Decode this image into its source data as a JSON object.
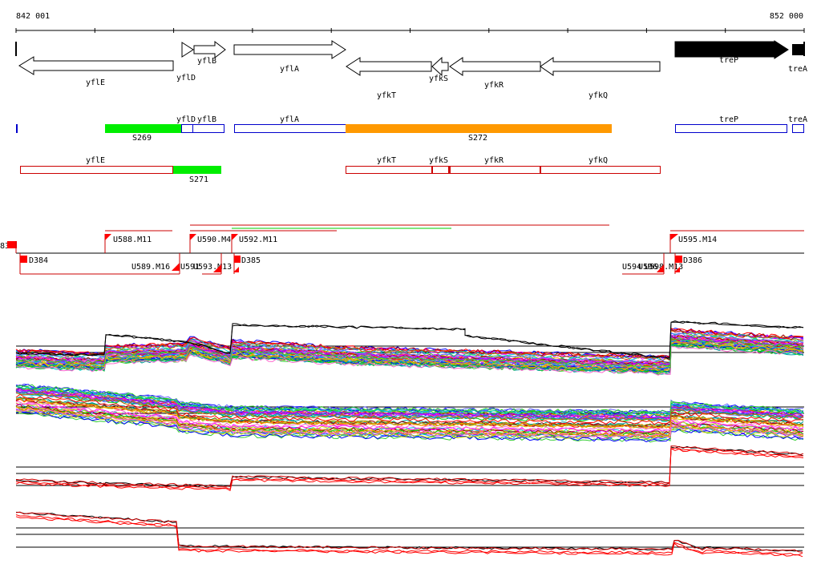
{
  "ruler": {
    "start_label": "842 001",
    "end_label": "852 000"
  },
  "genes": [
    {
      "name": "yflE",
      "strand": "-",
      "fill": "white"
    },
    {
      "name": "yflD",
      "strand": "+",
      "fill": "white"
    },
    {
      "name": "yflB",
      "strand": "+",
      "fill": "white"
    },
    {
      "name": "yflA",
      "strand": "+",
      "fill": "white"
    },
    {
      "name": "yfkT",
      "strand": "-",
      "fill": "white"
    },
    {
      "name": "yfkS",
      "strand": "-",
      "fill": "white"
    },
    {
      "name": "yfkR",
      "strand": "-",
      "fill": "white"
    },
    {
      "name": "yfkQ",
      "strand": "-",
      "fill": "white"
    },
    {
      "name": "treP",
      "strand": "+",
      "fill": "black"
    },
    {
      "name": "treA",
      "strand": "+",
      "fill": "black"
    }
  ],
  "plus_track": [
    {
      "label": "S269",
      "kind": "segment",
      "color": "#00ee00"
    },
    {
      "label": "yflD",
      "kind": "gene",
      "color": "#0000cc"
    },
    {
      "label": "yflB",
      "kind": "gene",
      "color": "#0000cc"
    },
    {
      "label": "yflA",
      "kind": "gene",
      "color": "#0000cc"
    },
    {
      "label": "S272",
      "kind": "segment",
      "color": "#ff9900"
    },
    {
      "label": "treP",
      "kind": "gene",
      "color": "#0000cc"
    },
    {
      "label": "treA",
      "kind": "gene",
      "color": "#0000cc"
    }
  ],
  "minus_track": [
    {
      "label": "yflE",
      "kind": "gene",
      "color": "#cc0000"
    },
    {
      "label": "S271",
      "kind": "segment",
      "color": "#00ee00"
    },
    {
      "label": "yfkT",
      "kind": "gene",
      "color": "#cc0000"
    },
    {
      "label": "yfkS",
      "kind": "gene",
      "color": "#cc0000"
    },
    {
      "label": "yfkR",
      "kind": "gene",
      "color": "#cc0000"
    },
    {
      "label": "yfkQ",
      "kind": "gene",
      "color": "#cc0000"
    }
  ],
  "upstream_sites": [
    "U588.M11",
    "U590.M4",
    "U592.M11",
    "U595.M14"
  ],
  "downstream_sites": [
    "D384",
    "D385",
    "D386"
  ],
  "lower_labels": [
    "U589.M16",
    "U591",
    "U593.M13",
    "U594",
    "U596",
    "U598.M13"
  ],
  "left_edge_label": "83",
  "colors": {
    "marker": "#ff0000",
    "plus": "#0000cc",
    "minus": "#cc0000"
  }
}
